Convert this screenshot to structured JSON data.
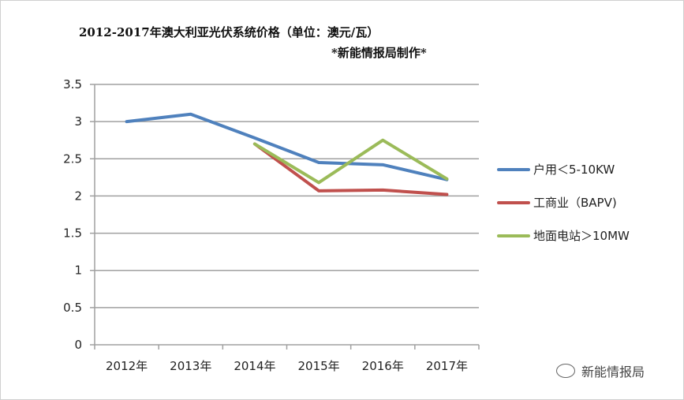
{
  "chart_data": {
    "type": "line",
    "title": "2012-2017年澳大利亚光伏系统价格（单位：澳元/瓦）",
    "subtitle": "*新能情报局制作*",
    "categories": [
      "2012年",
      "2013年",
      "2014年",
      "2015年",
      "2016年",
      "2017年"
    ],
    "ylim": [
      0,
      3.5
    ],
    "yticks": [
      "0",
      "0.5",
      "1",
      "1.5",
      "2",
      "2.5",
      "3",
      "3.5"
    ],
    "grid": true,
    "legend_position": "right",
    "series": [
      {
        "name": "户用＜5-10KW",
        "color": "#4f81bd",
        "values": [
          3.0,
          3.1,
          2.78,
          2.45,
          2.42,
          2.22
        ]
      },
      {
        "name": "工商业（BAPV)",
        "color": "#c0504d",
        "values": [
          null,
          null,
          2.7,
          2.07,
          2.08,
          2.02
        ]
      },
      {
        "name": "地面电站＞10MW",
        "color": "#9bbb59",
        "values": [
          null,
          null,
          2.7,
          2.18,
          2.75,
          2.23
        ]
      }
    ]
  },
  "watermark": {
    "text": "新能情报局",
    "icon": "wechat-icon"
  }
}
